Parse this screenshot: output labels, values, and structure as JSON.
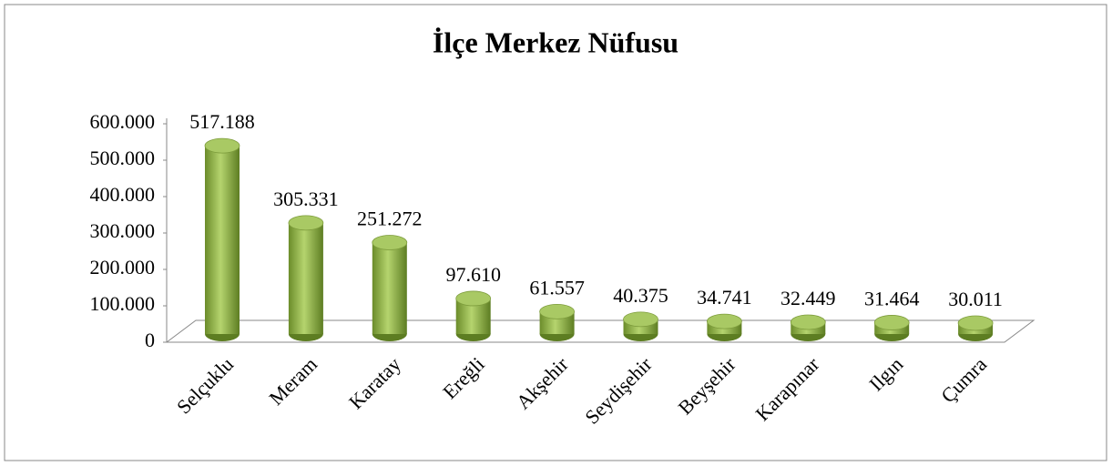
{
  "chart_data": {
    "type": "bar3d",
    "title": "İlçe Merkez Nüfusu",
    "categories": [
      "Selçuklu",
      "Meram",
      "Karatay",
      "Ereğli",
      "Akşehir",
      "Seydişehir",
      "Beyşehir",
      "Karapınar",
      "Ilgın",
      "Çumra"
    ],
    "values": [
      517188,
      305331,
      251272,
      97610,
      61557,
      40375,
      34741,
      32449,
      31464,
      30011
    ],
    "value_labels": [
      "517.188",
      "305.331",
      "251.272",
      "97.610",
      "61.557",
      "40.375",
      "34.741",
      "32.449",
      "31.464",
      "30.011"
    ],
    "color": "#9bbb59",
    "ylim": [
      0,
      600000
    ],
    "yticks": [
      0,
      {
        "value": 100000,
        "label": "100.000"
      },
      {
        "value": 200000,
        "label": "200.000"
      },
      {
        "value": 300000,
        "label": "300.000"
      },
      {
        "value": 400000,
        "label": "400.000"
      },
      {
        "value": 500000,
        "label": "500.000"
      },
      {
        "value": 600000,
        "label": "600.000"
      }
    ]
  }
}
